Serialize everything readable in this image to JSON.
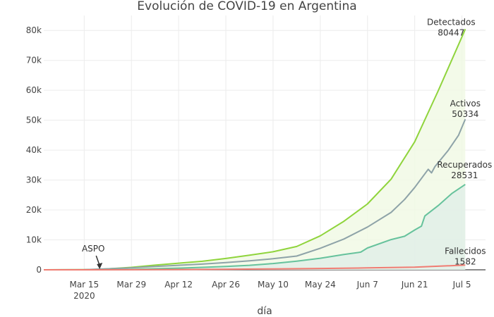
{
  "chart_data": {
    "type": "area",
    "title": "Evolución de COVID-19 en Argentina",
    "xlabel": "día",
    "ylabel": "",
    "x_range": [
      "2020-03-03",
      "2020-07-12"
    ],
    "ylim": [
      0,
      85000
    ],
    "grid": true,
    "x_ticks": [
      {
        "date": "2020-03-15",
        "label": "Mar 15",
        "sublabel": "2020"
      },
      {
        "date": "2020-03-29",
        "label": "Mar 29"
      },
      {
        "date": "2020-04-12",
        "label": "Apr 12"
      },
      {
        "date": "2020-04-26",
        "label": "Apr 26"
      },
      {
        "date": "2020-05-10",
        "label": "May 10"
      },
      {
        "date": "2020-05-24",
        "label": "May 24"
      },
      {
        "date": "2020-06-07",
        "label": "Jun 7"
      },
      {
        "date": "2020-06-21",
        "label": "Jun 21"
      },
      {
        "date": "2020-07-05",
        "label": "Jul 5"
      }
    ],
    "y_ticks": [
      {
        "value": 0,
        "label": "0"
      },
      {
        "value": 10000,
        "label": "10k"
      },
      {
        "value": 20000,
        "label": "20k"
      },
      {
        "value": 30000,
        "label": "30k"
      },
      {
        "value": 40000,
        "label": "40k"
      },
      {
        "value": 50000,
        "label": "50k"
      },
      {
        "value": 60000,
        "label": "60k"
      },
      {
        "value": 70000,
        "label": "70k"
      },
      {
        "value": 80000,
        "label": "80k"
      }
    ],
    "series": [
      {
        "name": "Detectados",
        "color": "#8fd43c",
        "fill": "#f1f9e5",
        "end_label": "80447",
        "points": [
          [
            "2020-03-03",
            0
          ],
          [
            "2020-03-15",
            56
          ],
          [
            "2020-03-20",
            158
          ],
          [
            "2020-03-29",
            820
          ],
          [
            "2020-04-05",
            1554
          ],
          [
            "2020-04-12",
            2208
          ],
          [
            "2020-04-19",
            2839
          ],
          [
            "2020-04-26",
            3780
          ],
          [
            "2020-05-03",
            4890
          ],
          [
            "2020-05-10",
            6034
          ],
          [
            "2020-05-17",
            7805
          ],
          [
            "2020-05-24",
            11353
          ],
          [
            "2020-05-31",
            16214
          ],
          [
            "2020-06-07",
            22020
          ],
          [
            "2020-06-14",
            30295
          ],
          [
            "2020-06-21",
            42785
          ],
          [
            "2020-06-28",
            59933
          ],
          [
            "2020-07-05",
            77815
          ],
          [
            "2020-07-06",
            80447
          ]
        ]
      },
      {
        "name": "Activos",
        "color": "#8ea3a8",
        "fill": "none",
        "end_label": "50334",
        "points": [
          [
            "2020-03-03",
            0
          ],
          [
            "2020-03-15",
            50
          ],
          [
            "2020-03-29",
            650
          ],
          [
            "2020-04-05",
            1100
          ],
          [
            "2020-04-12",
            1500
          ],
          [
            "2020-04-19",
            1900
          ],
          [
            "2020-04-26",
            2400
          ],
          [
            "2020-05-03",
            3000
          ],
          [
            "2020-05-10",
            3700
          ],
          [
            "2020-05-17",
            4600
          ],
          [
            "2020-05-24",
            7200
          ],
          [
            "2020-05-31",
            10300
          ],
          [
            "2020-06-07",
            14300
          ],
          [
            "2020-06-14",
            19200
          ],
          [
            "2020-06-18",
            23500
          ],
          [
            "2020-06-21",
            27500
          ],
          [
            "2020-06-25",
            33600
          ],
          [
            "2020-06-26",
            32400
          ],
          [
            "2020-06-27",
            34500
          ],
          [
            "2020-07-01",
            40000
          ],
          [
            "2020-07-04",
            45000
          ],
          [
            "2020-07-06",
            50334
          ]
        ]
      },
      {
        "name": "Recuperados",
        "color": "#66c29c",
        "fill": "#e0efe7",
        "end_label": "28531",
        "points": [
          [
            "2020-03-03",
            0
          ],
          [
            "2020-03-15",
            0
          ],
          [
            "2020-03-29",
            120
          ],
          [
            "2020-04-05",
            350
          ],
          [
            "2020-04-12",
            560
          ],
          [
            "2020-04-19",
            820
          ],
          [
            "2020-04-26",
            1100
          ],
          [
            "2020-05-03",
            1500
          ],
          [
            "2020-05-10",
            2100
          ],
          [
            "2020-05-17",
            2900
          ],
          [
            "2020-05-24",
            3850
          ],
          [
            "2020-05-31",
            5100
          ],
          [
            "2020-06-05",
            5900
          ],
          [
            "2020-06-07",
            7300
          ],
          [
            "2020-06-14",
            10100
          ],
          [
            "2020-06-18",
            11200
          ],
          [
            "2020-06-21",
            13300
          ],
          [
            "2020-06-23",
            14600
          ],
          [
            "2020-06-24",
            18000
          ],
          [
            "2020-06-28",
            21500
          ],
          [
            "2020-07-02",
            25500
          ],
          [
            "2020-07-06",
            28531
          ]
        ]
      },
      {
        "name": "Fallecidos",
        "color": "#f07c72",
        "fill": "none",
        "end_label": "1582",
        "points": [
          [
            "2020-03-03",
            0
          ],
          [
            "2020-03-15",
            2
          ],
          [
            "2020-03-29",
            24
          ],
          [
            "2020-04-12",
            98
          ],
          [
            "2020-04-26",
            192
          ],
          [
            "2020-05-10",
            305
          ],
          [
            "2020-05-24",
            445
          ],
          [
            "2020-06-07",
            639
          ],
          [
            "2020-06-21",
            878
          ],
          [
            "2020-07-06",
            1582
          ]
        ]
      }
    ],
    "annotations": [
      {
        "text": "ASPO",
        "date": "2020-03-20",
        "value": 0
      }
    ]
  }
}
